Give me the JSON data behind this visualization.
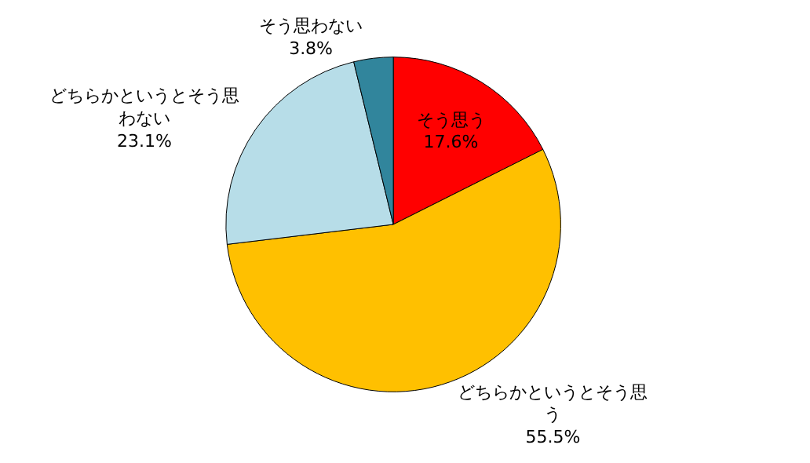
{
  "chart_data": {
    "type": "pie",
    "categories": [
      "そう思う",
      "どちらかというとそう思う",
      "どちらかというとそう思わない",
      "そう思わない"
    ],
    "values": [
      17.6,
      55.5,
      23.1,
      3.8
    ],
    "colors": [
      "#ff0000",
      "#ffc000",
      "#b7dde8",
      "#31859c"
    ],
    "value_labels": [
      "17.6%",
      "55.5%",
      "23.1%",
      "3.8%"
    ],
    "legend": false
  }
}
